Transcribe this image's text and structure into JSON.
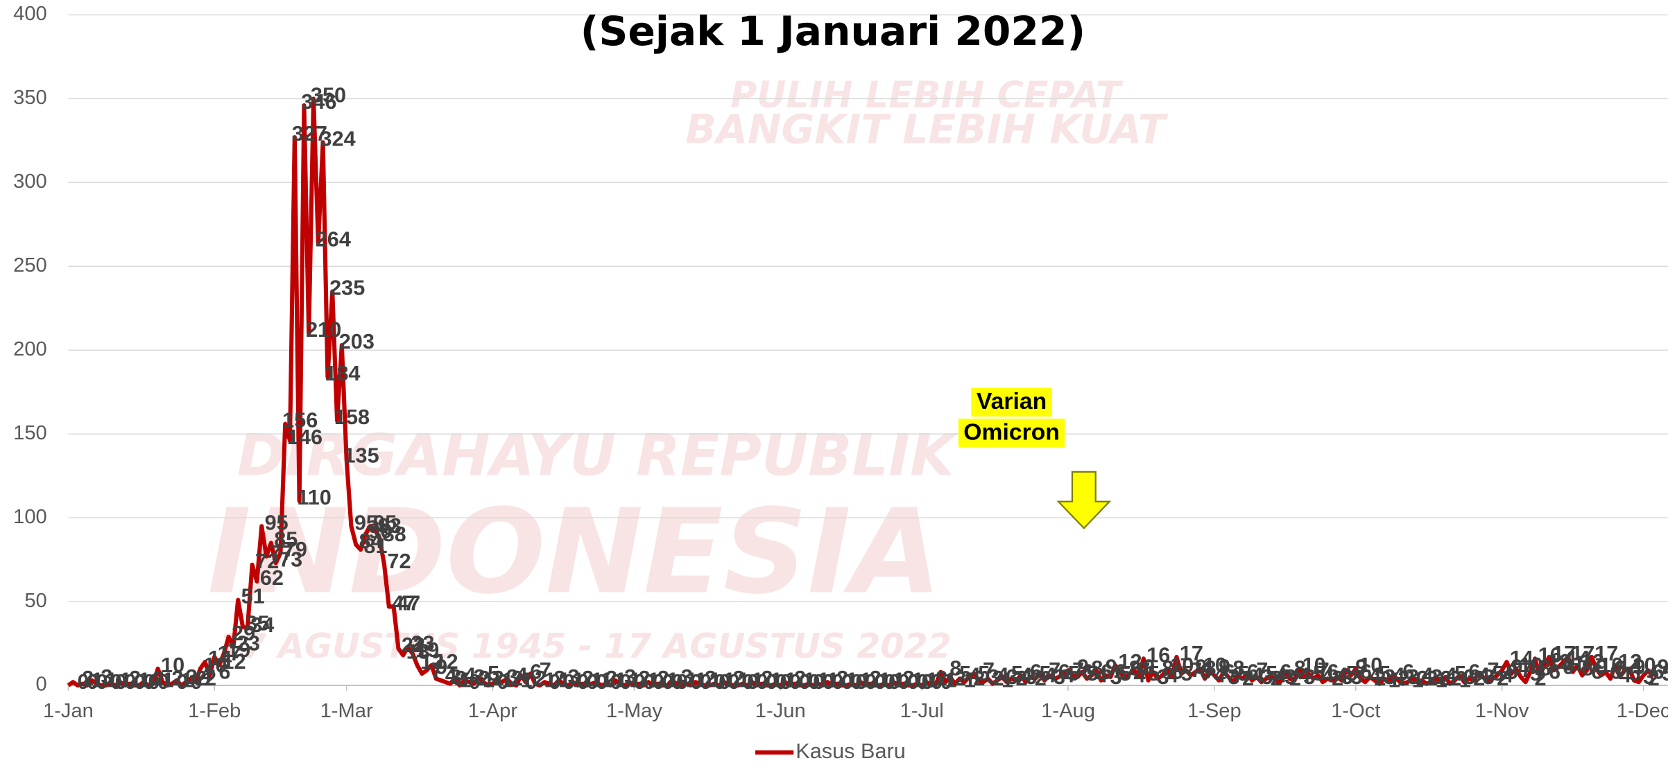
{
  "chart_data": {
    "type": "line",
    "title": "(Sejak 1 Januari 2022)",
    "background_texts": [
      "PULIH LEBIH CEPAT",
      "BANGKIT LEBIH KUAT",
      "DIRGAHAYU REPUBLIK",
      "INDONESIA",
      "17 AGUSTUS 1945 - 17 AGUSTUS 2022"
    ],
    "annotations": [
      "Varian",
      "Omicron"
    ],
    "categories": [
      "1-Jan",
      null,
      null,
      null,
      null,
      null,
      null,
      null,
      null,
      null,
      null,
      null,
      null,
      null,
      null,
      null,
      null,
      null,
      null,
      null,
      null,
      null,
      null,
      null,
      null,
      null,
      null,
      null,
      null,
      null,
      null,
      "1-Feb",
      null,
      null,
      null,
      null,
      null,
      null,
      null,
      null,
      null,
      null,
      null,
      null,
      null,
      null,
      null,
      null,
      null,
      null,
      null,
      null,
      null,
      null,
      null,
      null,
      null,
      null,
      null,
      "1-Mar",
      null,
      null,
      null,
      null,
      null,
      null,
      null,
      null,
      null,
      null,
      null,
      null,
      null,
      null,
      null,
      null,
      null,
      null,
      null,
      null,
      null,
      null,
      null,
      null,
      null,
      null,
      null,
      null,
      null,
      null,
      "1-Apr",
      null,
      null,
      null,
      null,
      null,
      null,
      null,
      null,
      null,
      null,
      null,
      null,
      null,
      null,
      null,
      null,
      null,
      null,
      null,
      null,
      null,
      null,
      null,
      null,
      null,
      null,
      null,
      null,
      null,
      "1-May",
      null,
      null,
      null,
      null,
      null,
      null,
      null,
      null,
      null,
      null,
      null,
      null,
      null,
      null,
      null,
      null,
      null,
      null,
      null,
      null,
      null,
      null,
      null,
      null,
      null,
      null,
      null,
      null,
      null,
      null,
      "1-Jun",
      null,
      null,
      null,
      null,
      null,
      null,
      null,
      null,
      null,
      null,
      null,
      null,
      null,
      null,
      null,
      null,
      null,
      null,
      null,
      null,
      null,
      null,
      null,
      null,
      null,
      null,
      null,
      null,
      null,
      "1-Jul",
      null,
      null,
      null,
      null,
      null,
      null,
      null,
      null,
      null,
      null,
      null,
      null,
      null,
      null,
      null,
      null,
      null,
      null,
      null,
      null,
      null,
      null,
      null,
      null,
      null,
      null,
      null,
      null,
      null,
      null,
      "1-Aug",
      null,
      null,
      null,
      null,
      null,
      null,
      null,
      null,
      null,
      null,
      null,
      null,
      null,
      null,
      null,
      null,
      null,
      null,
      null,
      null,
      null,
      null,
      null,
      null,
      null,
      null,
      null,
      null,
      null,
      null,
      "1-Sep",
      null,
      null,
      null,
      null,
      null,
      null,
      null,
      null,
      null,
      null,
      null,
      null,
      null,
      null,
      null,
      null,
      null,
      null,
      null,
      null,
      null,
      null,
      null,
      null,
      null,
      null,
      null,
      null,
      null,
      "1-Oct",
      null,
      null,
      null,
      null,
      null,
      null,
      null,
      null,
      null,
      null,
      null,
      null,
      null,
      null,
      null,
      null,
      null,
      null,
      null,
      null,
      null,
      null,
      null,
      null,
      null,
      null,
      null,
      null,
      null,
      null,
      "1-Nov",
      null,
      null,
      null,
      null,
      null,
      null,
      null,
      null,
      null,
      null,
      null,
      null,
      null,
      null,
      null,
      null,
      null,
      null,
      null,
      null,
      null,
      null,
      null,
      null,
      null,
      null,
      null,
      null,
      null,
      "1-Dec",
      null,
      null
    ],
    "series": [
      {
        "name": "Kasus Baru",
        "color": "#c00000",
        "values": [
          0,
          2,
          0,
          1,
          0,
          3,
          1,
          0,
          0,
          1,
          0,
          2,
          0,
          1,
          0,
          0,
          2,
          0,
          1,
          10,
          2,
          0,
          1,
          3,
          0,
          2,
          4,
          2,
          10,
          14,
          6,
          17,
          12,
          19,
          29,
          23,
          51,
          35,
          34,
          72,
          62,
          95,
          77,
          85,
          73,
          79,
          156,
          146,
          327,
          110,
          346,
          210,
          350,
          264,
          324,
          184,
          235,
          158,
          203,
          135,
          95,
          84,
          81,
          90,
          95,
          93,
          88,
          72,
          47,
          47,
          22,
          18,
          23,
          19,
          12,
          7,
          9,
          12,
          4,
          3,
          2,
          1,
          4,
          0,
          3,
          2,
          1,
          5,
          2,
          0,
          1,
          3,
          2,
          4,
          1,
          0,
          6,
          2,
          7,
          1,
          0,
          2,
          1,
          0,
          3,
          1,
          0,
          2,
          0,
          1,
          0,
          1,
          2,
          0,
          1,
          0,
          3,
          1,
          0,
          2,
          0,
          1,
          0,
          2,
          0,
          1,
          0,
          0,
          3,
          1,
          0,
          1,
          0,
          2,
          1,
          0,
          0,
          1,
          0,
          2,
          1,
          0,
          0,
          1,
          0,
          2,
          0,
          1,
          0,
          0,
          1,
          0,
          2,
          0,
          1,
          0,
          0,
          1,
          0,
          1,
          0,
          2,
          0,
          1,
          0,
          0,
          1,
          0,
          2,
          0,
          1,
          0,
          0,
          1,
          0,
          2,
          0,
          1,
          0,
          0,
          1,
          0,
          2,
          0,
          1,
          8,
          2,
          5,
          1,
          4,
          2,
          5,
          7,
          3,
          2,
          4,
          1,
          3,
          5,
          2,
          4,
          3,
          6,
          2,
          5,
          4,
          7,
          3,
          6,
          4,
          5,
          7,
          9,
          6,
          5,
          8,
          4,
          6,
          9,
          3,
          6,
          5,
          12,
          8,
          4,
          7,
          9,
          5,
          16,
          3,
          8,
          4,
          6,
          10,
          5,
          17,
          7,
          9,
          6,
          8,
          10,
          4,
          9,
          6,
          3,
          8,
          5,
          2,
          6,
          4,
          7,
          3,
          5,
          2,
          4,
          6,
          3,
          2,
          8,
          4,
          3,
          10,
          5,
          7,
          4,
          6,
          2,
          4,
          3,
          5,
          3,
          9,
          6,
          10,
          4,
          2,
          5,
          3,
          1,
          4,
          2,
          6,
          3,
          1,
          2,
          4,
          2,
          3,
          1,
          2,
          4,
          2,
          5,
          1,
          3,
          6,
          2,
          4,
          3,
          7,
          5,
          2,
          4,
          6,
          9,
          14,
          7,
          10,
          5,
          2,
          8,
          16,
          6,
          12,
          17,
          9,
          11,
          14,
          17,
          8,
          12,
          6,
          9,
          17,
          10,
          6,
          8,
          4,
          12,
          5,
          9,
          10,
          3,
          2,
          6,
          9,
          5
        ]
      }
    ],
    "ylim": [
      0,
      400
    ],
    "yticks": [
      0,
      50,
      100,
      150,
      200,
      250,
      300,
      350,
      400
    ],
    "grid": true,
    "data_labels": true,
    "legend": "bottom"
  }
}
